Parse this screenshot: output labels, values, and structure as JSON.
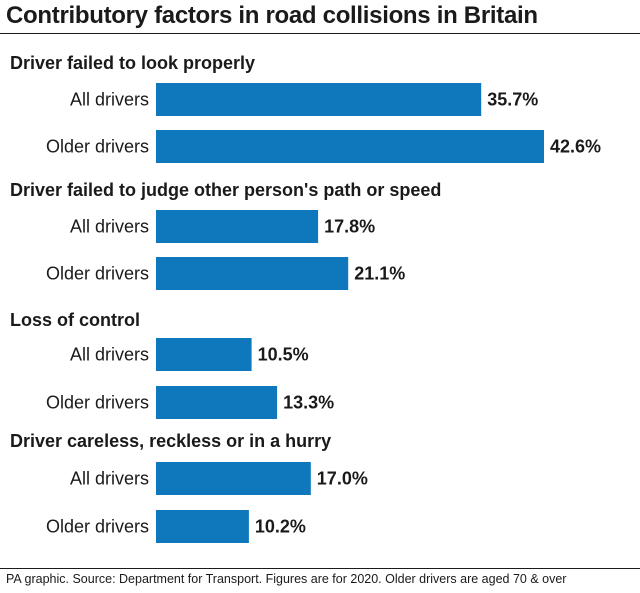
{
  "title": "Contributory factors in road collisions in Britain",
  "footer": "PA graphic. Source: Department for Transport. Figures are for 2020. Older drivers are aged 70 & over",
  "colors": {
    "bar": "#0f78bd",
    "text": "#1a1a1a"
  },
  "chart_data": {
    "type": "bar",
    "orientation": "horizontal",
    "unit": "%",
    "groups": [
      {
        "category": "Driver failed to look properly",
        "bars": [
          {
            "label": "All drivers",
            "value": 35.7,
            "value_label": "35.7%"
          },
          {
            "label": "Older drivers",
            "value": 42.6,
            "value_label": "42.6%"
          }
        ]
      },
      {
        "category": "Driver failed to judge other person's path or speed",
        "bars": [
          {
            "label": "All drivers",
            "value": 17.8,
            "value_label": "17.8%"
          },
          {
            "label": "Older drivers",
            "value": 21.1,
            "value_label": "21.1%"
          }
        ]
      },
      {
        "category": "Loss of control",
        "bars": [
          {
            "label": "All drivers",
            "value": 10.5,
            "value_label": "10.5%"
          },
          {
            "label": "Older drivers",
            "value": 13.3,
            "value_label": "13.3%"
          }
        ]
      },
      {
        "category": "Driver careless, reckless or in a hurry",
        "bars": [
          {
            "label": "All drivers",
            "value": 17.0,
            "value_label": "17.0%"
          },
          {
            "label": "Older drivers",
            "value": 10.2,
            "value_label": "10.2%"
          }
        ]
      }
    ],
    "xlim": [
      0,
      42.6
    ],
    "grid": false,
    "legend": "none"
  }
}
